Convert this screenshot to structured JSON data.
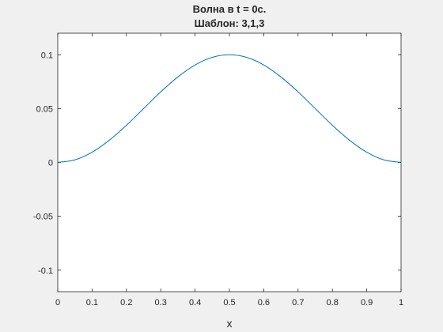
{
  "chart_data": {
    "type": "line",
    "title": "Волна в t = 0с.",
    "subtitle": "Шаблон: 3,1,3",
    "xlabel": "x",
    "ylabel": "",
    "xlim": [
      0,
      1
    ],
    "ylim": [
      -0.12,
      0.12
    ],
    "x_ticks": [
      0,
      0.1,
      0.2,
      0.3,
      0.4,
      0.5,
      0.6,
      0.7,
      0.8,
      0.9,
      1
    ],
    "x_tick_labels": [
      "0",
      "0.1",
      "0.2",
      "0.3",
      "0.4",
      "0.5",
      "0.6",
      "0.7",
      "0.8",
      "0.9",
      "1"
    ],
    "y_ticks": [
      0.1,
      0.05,
      0,
      -0.05,
      -0.1
    ],
    "y_tick_labels": [
      "0.1",
      "0.05",
      "0",
      "-0.05",
      "-0.1"
    ],
    "grid": false,
    "series": [
      {
        "color": "#0072bd",
        "x": [
          0,
          0.05,
          0.1,
          0.15,
          0.2,
          0.25,
          0.3,
          0.35,
          0.4,
          0.45,
          0.5,
          0.55,
          0.6,
          0.65,
          0.7,
          0.75,
          0.8,
          0.85,
          0.9,
          0.95,
          1
        ],
        "y": [
          0,
          0.0024,
          0.0095,
          0.0206,
          0.0345,
          0.05,
          0.0655,
          0.0794,
          0.0905,
          0.0976,
          0.1,
          0.0976,
          0.0905,
          0.0794,
          0.0655,
          0.05,
          0.0345,
          0.0206,
          0.0095,
          0.0024,
          0
        ]
      }
    ]
  }
}
